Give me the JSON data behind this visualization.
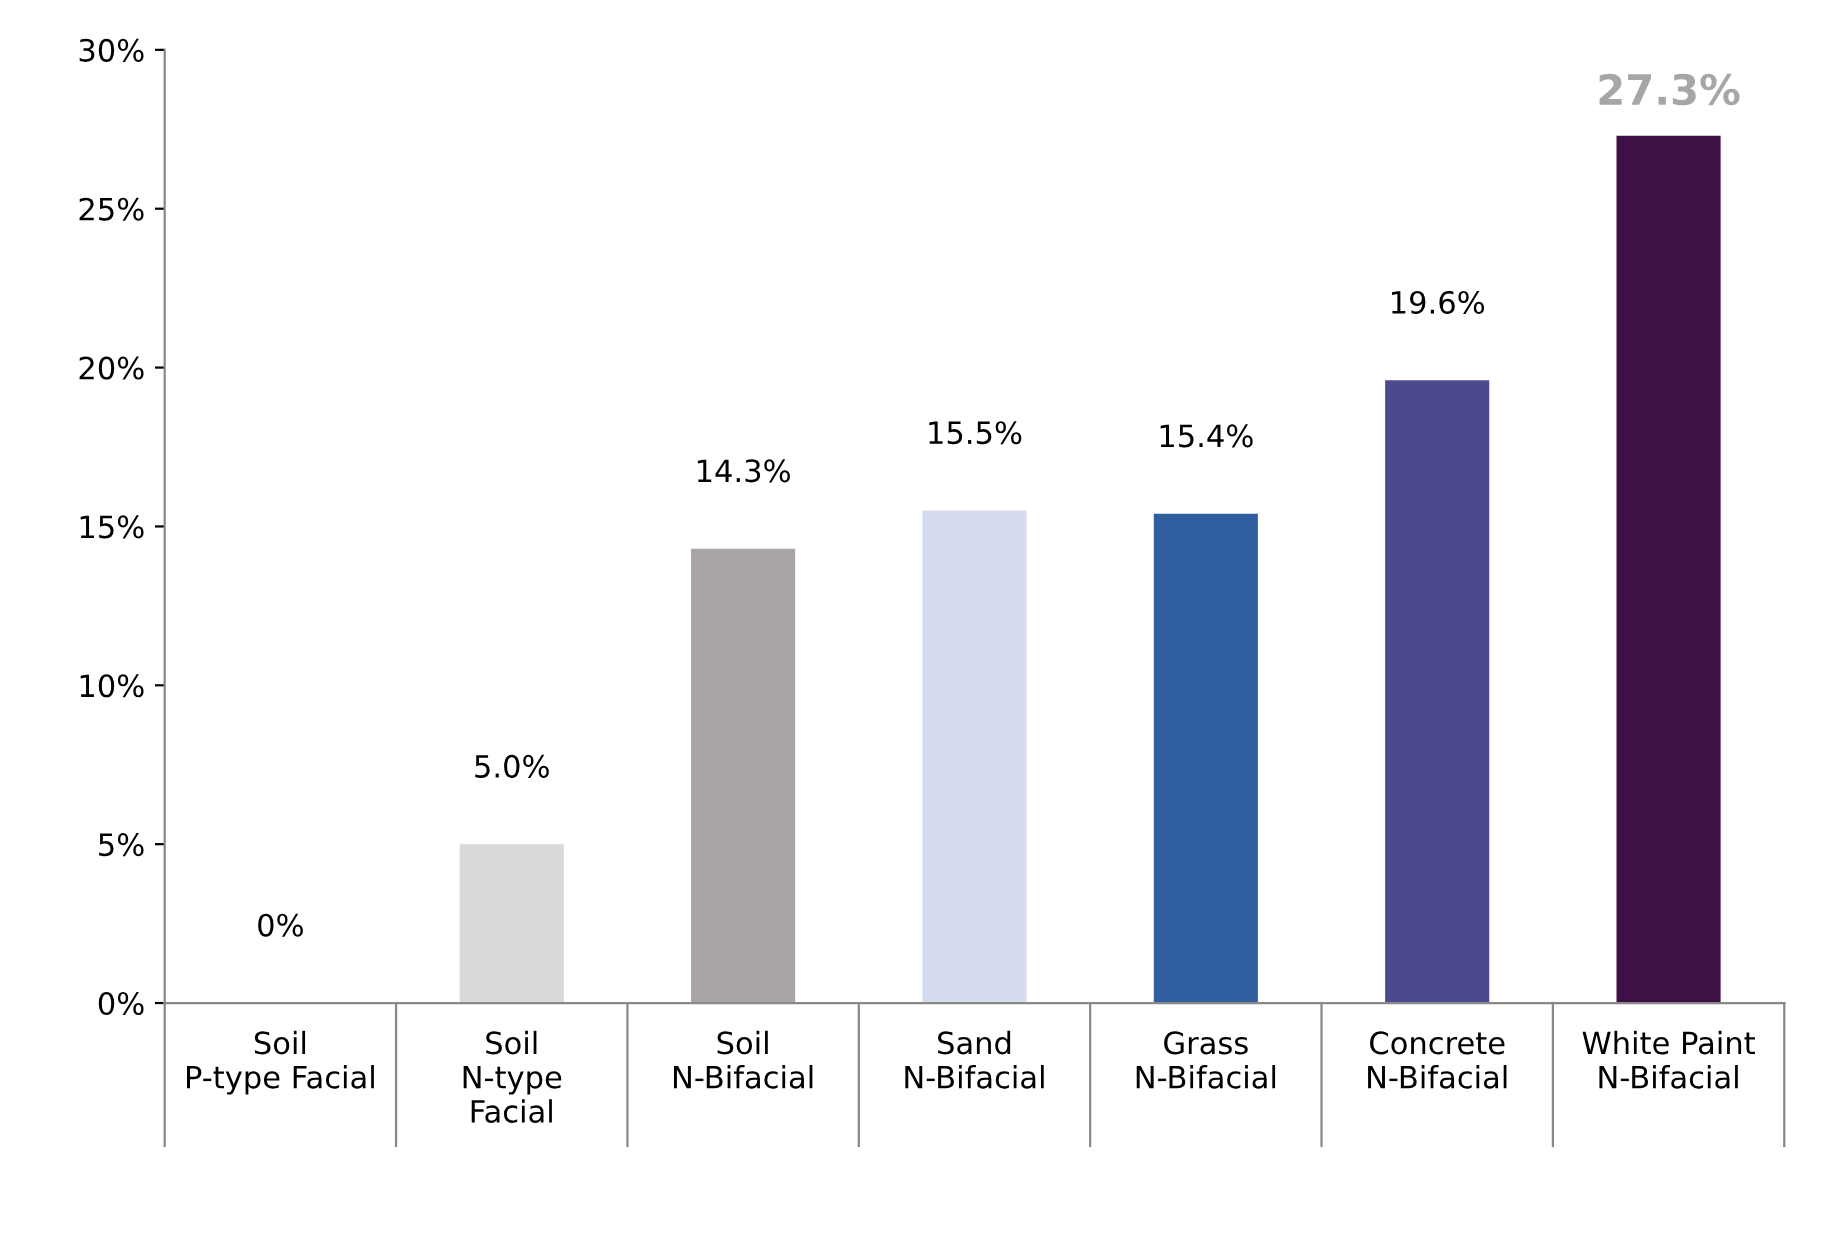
{
  "chart_data": {
    "type": "bar",
    "categories": [
      "Soil\nP-type Facial",
      "Soil\nN-type\nFacial",
      "Soil\nN-Bifacial",
      "Sand\nN-Bifacial",
      "Grass\nN-Bifacial",
      "Concrete\nN-Bifacial",
      "White Paint\nN-Bifacial"
    ],
    "values": [
      0,
      5.0,
      14.3,
      15.5,
      15.4,
      19.6,
      27.3
    ],
    "colors": [
      "#ffffff",
      "#d9d9d9",
      "#a9a5a6",
      "#d6dcef",
      "#2f5f9e",
      "#4b4a8e",
      "#3f1045"
    ],
    "value_labels": [
      "0%",
      "5.0%",
      "14.3%",
      "15.5%",
      "15.4%",
      "19.6%",
      "27.3%"
    ],
    "ylim": [
      0,
      30
    ],
    "yticks": [
      {
        "value": 0,
        "label": "0%"
      },
      {
        "value": 5,
        "label": "5%"
      },
      {
        "value": 10,
        "label": "10%"
      },
      {
        "value": 15,
        "label": "15%"
      },
      {
        "value": 20,
        "label": "20%"
      },
      {
        "value": 25,
        "label": "25%"
      },
      {
        "value": 30,
        "label": "30%"
      }
    ],
    "grid": false,
    "legend": false
  }
}
